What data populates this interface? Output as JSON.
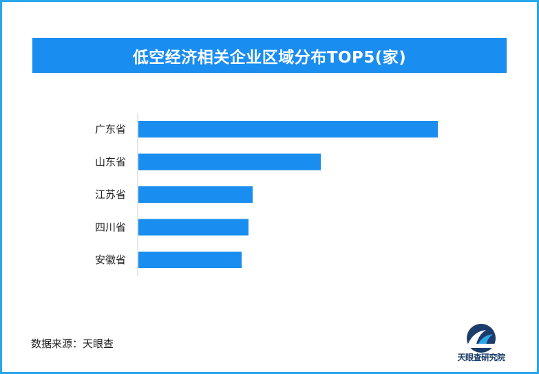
{
  "colors": {
    "frame": "#2aa7ea",
    "banner": "#1a8df0",
    "bar": "#1a8df0",
    "axis": "#cfcfcf"
  },
  "chart_data": {
    "type": "bar",
    "orientation": "horizontal",
    "title": "低空经济相关企业区域分布TOP5(家)",
    "categories": [
      "广东省",
      "山东省",
      "江苏省",
      "四川省",
      "安徽省"
    ],
    "values": [
      4350,
      2650,
      1660,
      1600,
      1500
    ],
    "xlim": [
      0,
      4600
    ],
    "grid": false,
    "data_labels": false
  },
  "source": "数据来源：天眼查",
  "logo": {
    "icon": "tianyancha-logo-icon",
    "text": "天眼查研究院"
  }
}
